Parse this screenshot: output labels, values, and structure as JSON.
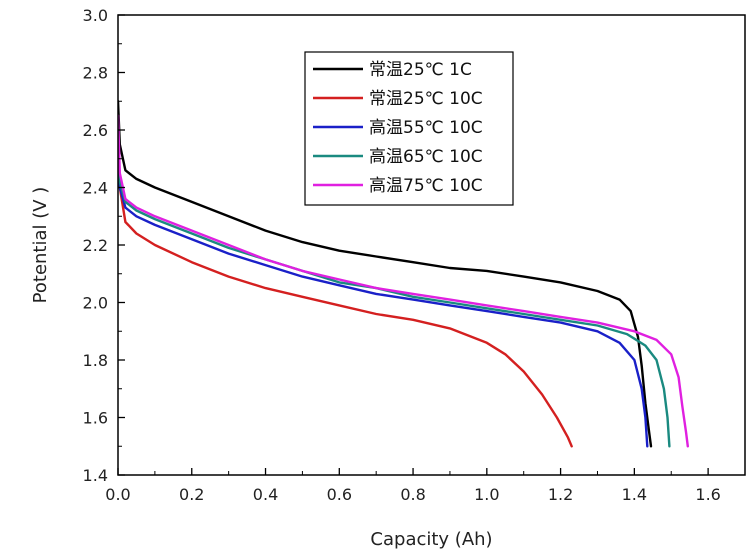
{
  "chart_data": {
    "type": "line",
    "title": "",
    "xlabel": "Capacity (Ah)",
    "ylabel": "Potential (V )",
    "xlim": [
      0.0,
      1.7
    ],
    "ylim": [
      1.4,
      3.0
    ],
    "x_ticks": [
      "0.0",
      "0.2",
      "0.4",
      "0.6",
      "0.8",
      "1.0",
      "1.2",
      "1.4",
      "1.6"
    ],
    "y_ticks": [
      "1.4",
      "1.6",
      "1.8",
      "2.0",
      "2.2",
      "2.4",
      "2.6",
      "2.8",
      "3.0"
    ],
    "grid": false,
    "legend_position": "top-center",
    "series": [
      {
        "name": "常温25℃ 1C",
        "color": "#000000",
        "points": [
          [
            0.0,
            2.7
          ],
          [
            0.005,
            2.55
          ],
          [
            0.02,
            2.46
          ],
          [
            0.05,
            2.43
          ],
          [
            0.1,
            2.4
          ],
          [
            0.2,
            2.35
          ],
          [
            0.3,
            2.3
          ],
          [
            0.4,
            2.25
          ],
          [
            0.5,
            2.21
          ],
          [
            0.6,
            2.18
          ],
          [
            0.7,
            2.16
          ],
          [
            0.8,
            2.14
          ],
          [
            0.9,
            2.12
          ],
          [
            1.0,
            2.11
          ],
          [
            1.1,
            2.09
          ],
          [
            1.2,
            2.07
          ],
          [
            1.3,
            2.04
          ],
          [
            1.36,
            2.01
          ],
          [
            1.39,
            1.97
          ],
          [
            1.41,
            1.88
          ],
          [
            1.42,
            1.78
          ],
          [
            1.43,
            1.65
          ],
          [
            1.44,
            1.55
          ],
          [
            1.445,
            1.5
          ]
        ]
      },
      {
        "name": "常温25℃ 10C",
        "color": "#d42020",
        "points": [
          [
            0.0,
            2.6
          ],
          [
            0.005,
            2.4
          ],
          [
            0.02,
            2.28
          ],
          [
            0.05,
            2.24
          ],
          [
            0.1,
            2.2
          ],
          [
            0.2,
            2.14
          ],
          [
            0.3,
            2.09
          ],
          [
            0.4,
            2.05
          ],
          [
            0.5,
            2.02
          ],
          [
            0.6,
            1.99
          ],
          [
            0.7,
            1.96
          ],
          [
            0.8,
            1.94
          ],
          [
            0.9,
            1.91
          ],
          [
            1.0,
            1.86
          ],
          [
            1.05,
            1.82
          ],
          [
            1.1,
            1.76
          ],
          [
            1.15,
            1.68
          ],
          [
            1.19,
            1.6
          ],
          [
            1.22,
            1.53
          ],
          [
            1.23,
            1.5
          ]
        ]
      },
      {
        "name": "高温55℃ 10C",
        "color": "#1a20c8",
        "points": [
          [
            0.0,
            2.55
          ],
          [
            0.005,
            2.4
          ],
          [
            0.02,
            2.33
          ],
          [
            0.05,
            2.3
          ],
          [
            0.1,
            2.27
          ],
          [
            0.2,
            2.22
          ],
          [
            0.3,
            2.17
          ],
          [
            0.4,
            2.13
          ],
          [
            0.5,
            2.09
          ],
          [
            0.6,
            2.06
          ],
          [
            0.7,
            2.03
          ],
          [
            0.8,
            2.01
          ],
          [
            0.9,
            1.99
          ],
          [
            1.0,
            1.97
          ],
          [
            1.1,
            1.95
          ],
          [
            1.2,
            1.93
          ],
          [
            1.3,
            1.9
          ],
          [
            1.36,
            1.86
          ],
          [
            1.4,
            1.8
          ],
          [
            1.42,
            1.7
          ],
          [
            1.43,
            1.6
          ],
          [
            1.435,
            1.5
          ]
        ]
      },
      {
        "name": "高温65℃ 10C",
        "color": "#1a8a80",
        "points": [
          [
            0.0,
            2.55
          ],
          [
            0.005,
            2.42
          ],
          [
            0.02,
            2.35
          ],
          [
            0.05,
            2.32
          ],
          [
            0.1,
            2.29
          ],
          [
            0.2,
            2.24
          ],
          [
            0.3,
            2.19
          ],
          [
            0.4,
            2.15
          ],
          [
            0.5,
            2.11
          ],
          [
            0.6,
            2.07
          ],
          [
            0.7,
            2.05
          ],
          [
            0.8,
            2.02
          ],
          [
            0.9,
            2.0
          ],
          [
            1.0,
            1.98
          ],
          [
            1.1,
            1.96
          ],
          [
            1.2,
            1.94
          ],
          [
            1.3,
            1.92
          ],
          [
            1.38,
            1.89
          ],
          [
            1.43,
            1.85
          ],
          [
            1.46,
            1.8
          ],
          [
            1.48,
            1.7
          ],
          [
            1.49,
            1.6
          ],
          [
            1.495,
            1.5
          ]
        ]
      },
      {
        "name": "高温75℃ 10C",
        "color": "#e020e0",
        "points": [
          [
            0.0,
            2.65
          ],
          [
            0.005,
            2.45
          ],
          [
            0.02,
            2.36
          ],
          [
            0.05,
            2.33
          ],
          [
            0.1,
            2.3
          ],
          [
            0.2,
            2.25
          ],
          [
            0.3,
            2.2
          ],
          [
            0.4,
            2.15
          ],
          [
            0.5,
            2.11
          ],
          [
            0.6,
            2.08
          ],
          [
            0.7,
            2.05
          ],
          [
            0.8,
            2.03
          ],
          [
            0.9,
            2.01
          ],
          [
            1.0,
            1.99
          ],
          [
            1.1,
            1.97
          ],
          [
            1.2,
            1.95
          ],
          [
            1.3,
            1.93
          ],
          [
            1.4,
            1.9
          ],
          [
            1.46,
            1.87
          ],
          [
            1.5,
            1.82
          ],
          [
            1.52,
            1.74
          ],
          [
            1.53,
            1.64
          ],
          [
            1.54,
            1.55
          ],
          [
            1.545,
            1.5
          ]
        ]
      }
    ]
  }
}
